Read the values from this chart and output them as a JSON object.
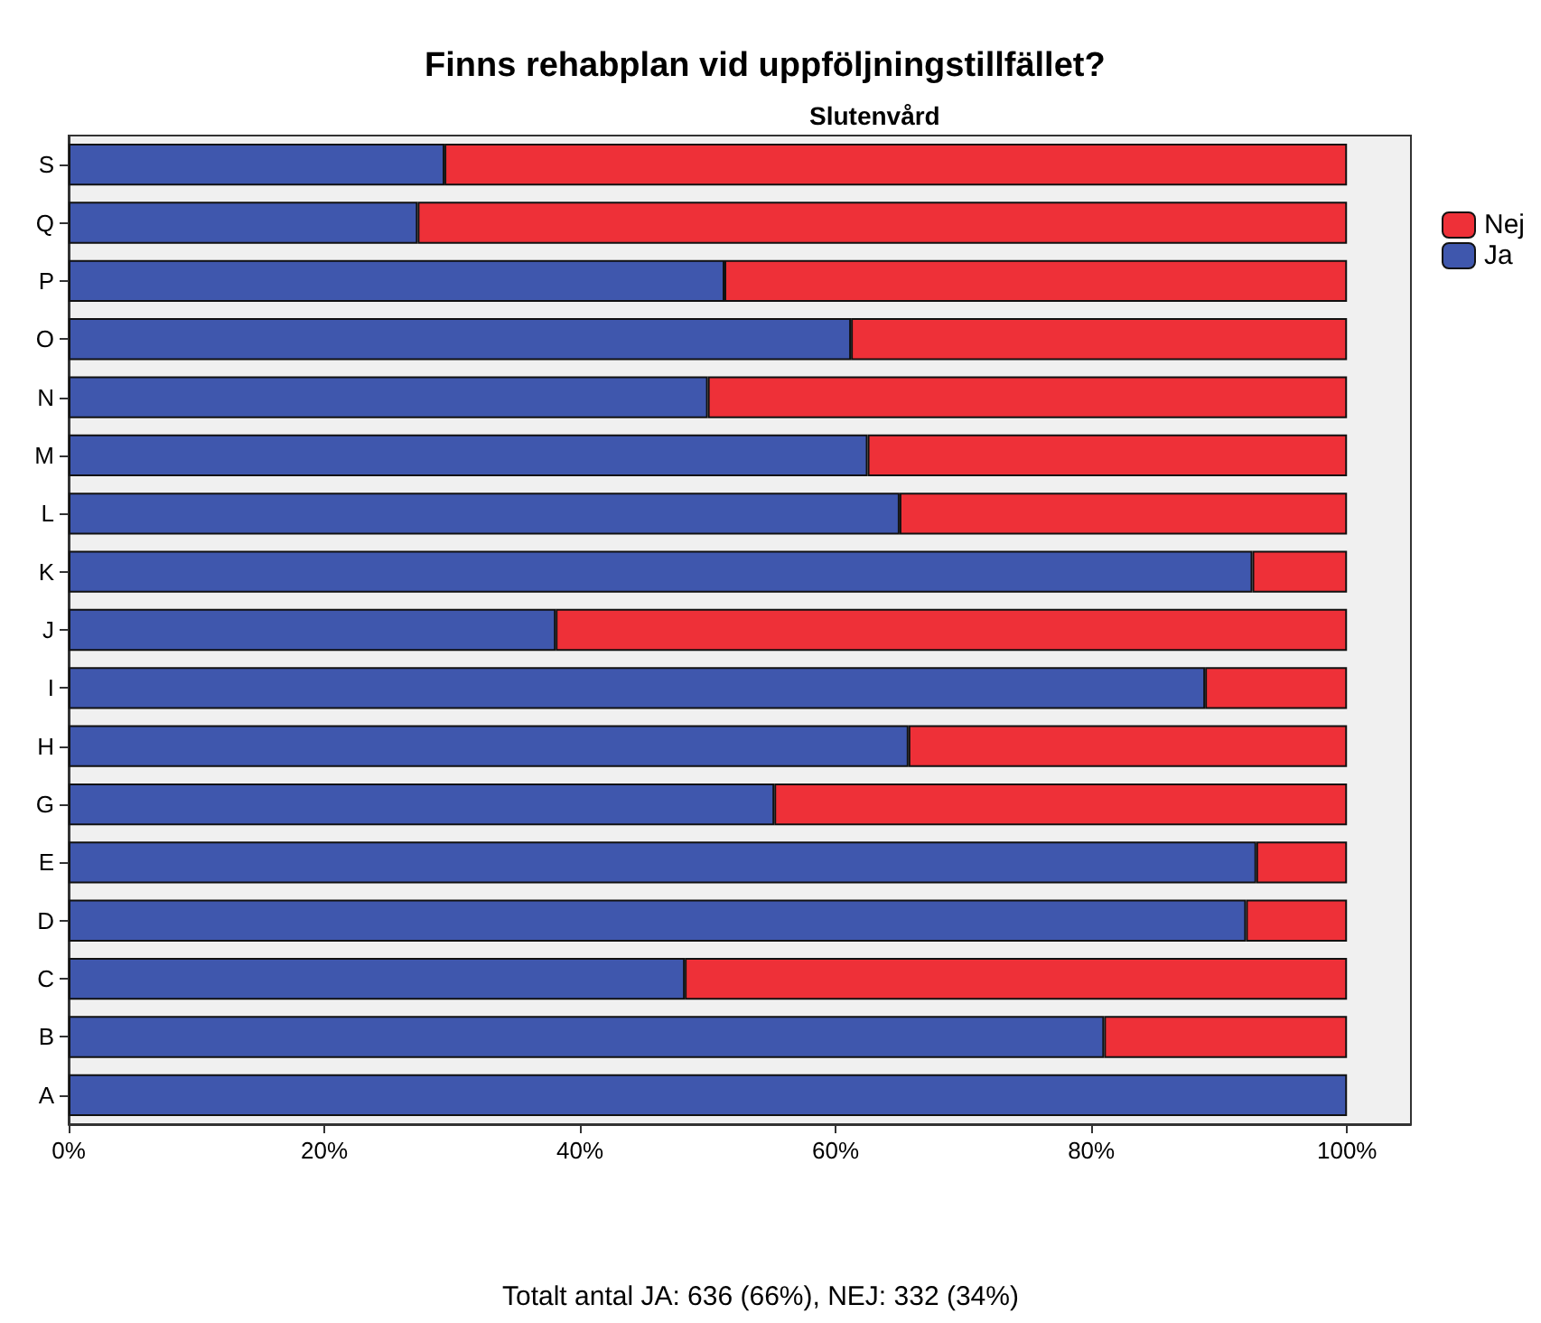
{
  "chart_data": {
    "type": "bar",
    "orientation": "horizontal",
    "stacked": true,
    "title": "Finns rehabplan vid uppföljningstillfället?",
    "subtitle": "Slutenvård",
    "categories": [
      "S",
      "Q",
      "P",
      "O",
      "N",
      "M",
      "L",
      "K",
      "J",
      "I",
      "H",
      "G",
      "E",
      "D",
      "C",
      "B",
      "A"
    ],
    "series": [
      {
        "name": "Ja",
        "color": "#3f57ad",
        "values": [
          29.4,
          27.3,
          51.3,
          61.2,
          50.0,
          62.5,
          65.0,
          92.6,
          38.1,
          88.9,
          65.7,
          55.2,
          92.9,
          92.1,
          48.2,
          81.0,
          100
        ]
      },
      {
        "name": "Nej",
        "color": "#ee3038",
        "values": [
          70.6,
          72.7,
          48.7,
          38.8,
          50.0,
          37.5,
          35.0,
          7.4,
          61.9,
          11.1,
          34.3,
          44.8,
          7.1,
          7.9,
          51.8,
          19.0,
          null
        ]
      }
    ],
    "xlim": [
      0,
      105
    ],
    "xticks": [
      {
        "value": 0,
        "label": "0%"
      },
      {
        "value": 20,
        "label": "20%"
      },
      {
        "value": 40,
        "label": "40%"
      },
      {
        "value": 60,
        "label": "60%"
      },
      {
        "value": 80,
        "label": "80%"
      },
      {
        "value": 100,
        "label": "100%"
      }
    ],
    "grid": false,
    "legend": "top right",
    "annotations": [
      "Totalt antal JA: 636 (66%), NEJ: 332 (34%)"
    ]
  }
}
